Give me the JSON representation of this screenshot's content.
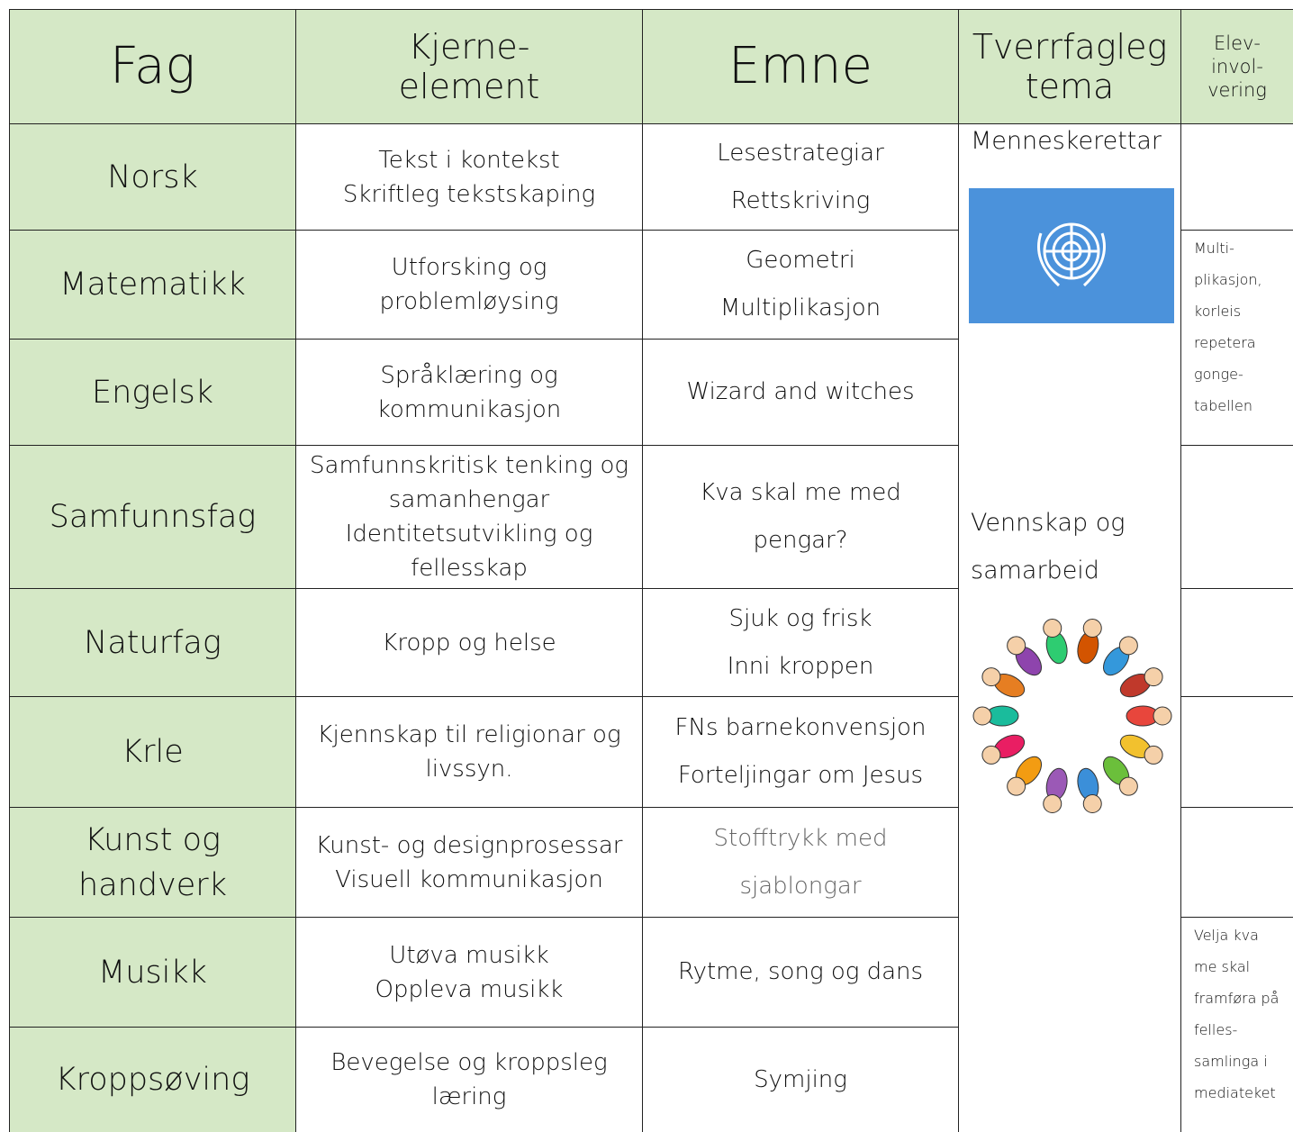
{
  "table": {
    "header": [
      [
        "Fag"
      ],
      [
        "Kjerne-",
        "element"
      ],
      [
        "Emne"
      ],
      [
        "Tverrfagleg",
        "tema"
      ],
      [
        "Elev-",
        "invol-",
        "vering"
      ]
    ],
    "rows": [
      {
        "fag": [
          "Norsk"
        ],
        "kjerneelement": [
          "Tekst i kontekst",
          "Skriftleg tekstskaping"
        ],
        "emne": [
          "Lesestrategiar",
          "Rettskriving"
        ]
      },
      {
        "fag": [
          "Matematikk"
        ],
        "kjerneelement": [
          "Utforsking og",
          "problemløysing"
        ],
        "emne": [
          "Geometri",
          "Multiplikasjon"
        ]
      },
      {
        "fag": [
          "Engelsk"
        ],
        "kjerneelement": [
          "Språklæring og",
          "kommunikasjon"
        ],
        "emne": [
          "Wizard and witches"
        ]
      },
      {
        "fag": [
          "Samfunnsfag"
        ],
        "kjerneelement": [
          "Samfunnskritisk tenking og",
          "samanhengar",
          "Identitetsutvikling og",
          "fellesskap"
        ],
        "emne": [
          "Kva skal me med",
          "pengar?"
        ]
      },
      {
        "fag": [
          "Naturfag"
        ],
        "kjerneelement": [
          "Kropp og helse"
        ],
        "emne": [
          "Sjuk og frisk",
          "Inni kroppen"
        ]
      },
      {
        "fag": [
          "Krle"
        ],
        "kjerneelement": [
          "Kjennskap til religionar og",
          "livssyn."
        ],
        "emne": [
          "FNs barnekonvensjon",
          "Forteljingar om Jesus"
        ]
      },
      {
        "fag": [
          "Kunst og",
          "handverk"
        ],
        "kjerneelement": [
          "Kunst- og designprosessar",
          "Visuell kommunikasjon"
        ],
        "emne": [
          "Stofftrykk med",
          "sjablongar"
        ]
      },
      {
        "fag": [
          "Musikk"
        ],
        "kjerneelement": [
          "Utøva musikk",
          "Oppleva musikk"
        ],
        "emne": [
          "Rytme, song og dans"
        ]
      },
      {
        "fag": [
          "Kroppsøving"
        ],
        "kjerneelement": [
          "Bevegelse og kroppsleg",
          "læring"
        ],
        "emne": [
          "Symjing"
        ]
      }
    ],
    "tema": [
      [
        "Menneskerettar"
      ],
      [
        "Vennskap og",
        "samarbeid"
      ]
    ],
    "elevinvolvering": [
      [
        "Multi-",
        "plikasjon,",
        "korleis",
        "repetera",
        "gonge-",
        "tabellen"
      ],
      [
        "Velja kva",
        "me skal",
        "framføra på",
        "felles-",
        "samlinga i",
        "mediateket"
      ]
    ]
  }
}
